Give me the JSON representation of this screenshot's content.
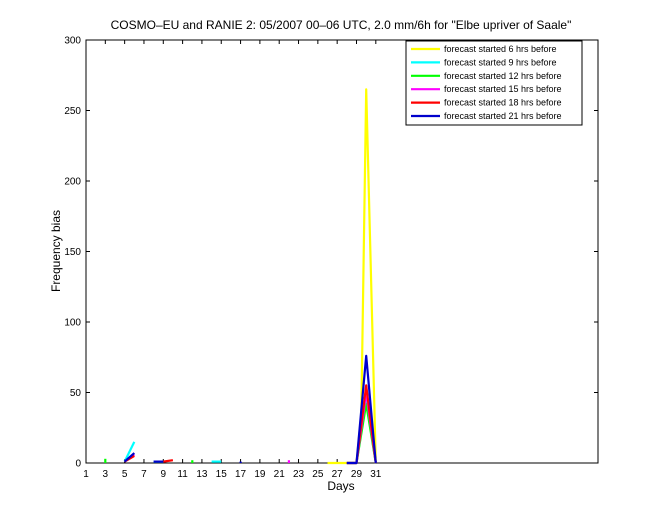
{
  "chart_data": {
    "type": "line",
    "title": "COSMO–EU and RANIE 2: 05/2007 00–06 UTC, 2.0 mm/6h for \"Elbe upriver of Saale\"",
    "xlabel": "Days",
    "ylabel": "Frequency bias",
    "xlim": [
      1,
      54
    ],
    "ylim": [
      0,
      300
    ],
    "xticks": [
      1,
      3,
      5,
      7,
      9,
      11,
      13,
      15,
      17,
      19,
      21,
      23,
      25,
      27,
      29,
      31
    ],
    "yticks": [
      0,
      50,
      100,
      150,
      200,
      250,
      300
    ],
    "legend_position": "top-right",
    "series": [
      {
        "name": "forecast started 6 hrs before",
        "color": "#ffff00",
        "segments": [
          [
            [
              26,
              0
            ],
            [
              27,
              0
            ],
            [
              28,
              0
            ],
            [
              29,
              0
            ],
            [
              29.5,
              35
            ],
            [
              30,
              265
            ],
            [
              31,
              0
            ]
          ]
        ]
      },
      {
        "name": "forecast started 9 hrs before",
        "color": "#00ffff",
        "segments": [
          [
            [
              5,
              1
            ],
            [
              6,
              15
            ]
          ],
          [
            [
              8,
              1
            ],
            [
              9,
              1
            ]
          ],
          [
            [
              14,
              1
            ],
            [
              15,
              1
            ]
          ],
          [
            [
              28,
              0
            ],
            [
              29,
              0
            ],
            [
              30,
              45
            ],
            [
              31,
              0
            ]
          ]
        ]
      },
      {
        "name": "forecast started 12 hrs before",
        "color": "#00ff00",
        "segments": [
          [
            [
              3,
              0
            ],
            [
              3,
              3
            ]
          ],
          [
            [
              12,
              0
            ],
            [
              12,
              2
            ]
          ],
          [
            [
              28,
              0
            ],
            [
              29,
              0
            ],
            [
              30,
              42
            ],
            [
              31,
              0
            ]
          ]
        ]
      },
      {
        "name": "forecast started 15 hrs before",
        "color": "#ff00ff",
        "segments": [
          [
            [
              5,
              1
            ],
            [
              6,
              6
            ]
          ],
          [
            [
              22,
              0
            ],
            [
              22,
              2
            ]
          ],
          [
            [
              28,
              0
            ],
            [
              29,
              0
            ],
            [
              30,
              50
            ],
            [
              31,
              0
            ]
          ]
        ]
      },
      {
        "name": "forecast started 18 hrs before",
        "color": "#ff0000",
        "segments": [
          [
            [
              5,
              1
            ],
            [
              6,
              5
            ]
          ],
          [
            [
              9,
              1
            ],
            [
              10,
              2
            ]
          ],
          [
            [
              28,
              0
            ],
            [
              29,
              0
            ],
            [
              30,
              55
            ],
            [
              31,
              0
            ]
          ]
        ]
      },
      {
        "name": "forecast started 21 hrs before",
        "color": "#0000cc",
        "segments": [
          [
            [
              5,
              1
            ],
            [
              6,
              7
            ]
          ],
          [
            [
              8,
              1
            ],
            [
              9,
              1
            ]
          ],
          [
            [
              17,
              0
            ],
            [
              17,
              1
            ]
          ],
          [
            [
              28,
              0
            ],
            [
              29,
              0
            ],
            [
              30,
              76
            ],
            [
              31,
              0
            ]
          ]
        ]
      }
    ]
  }
}
